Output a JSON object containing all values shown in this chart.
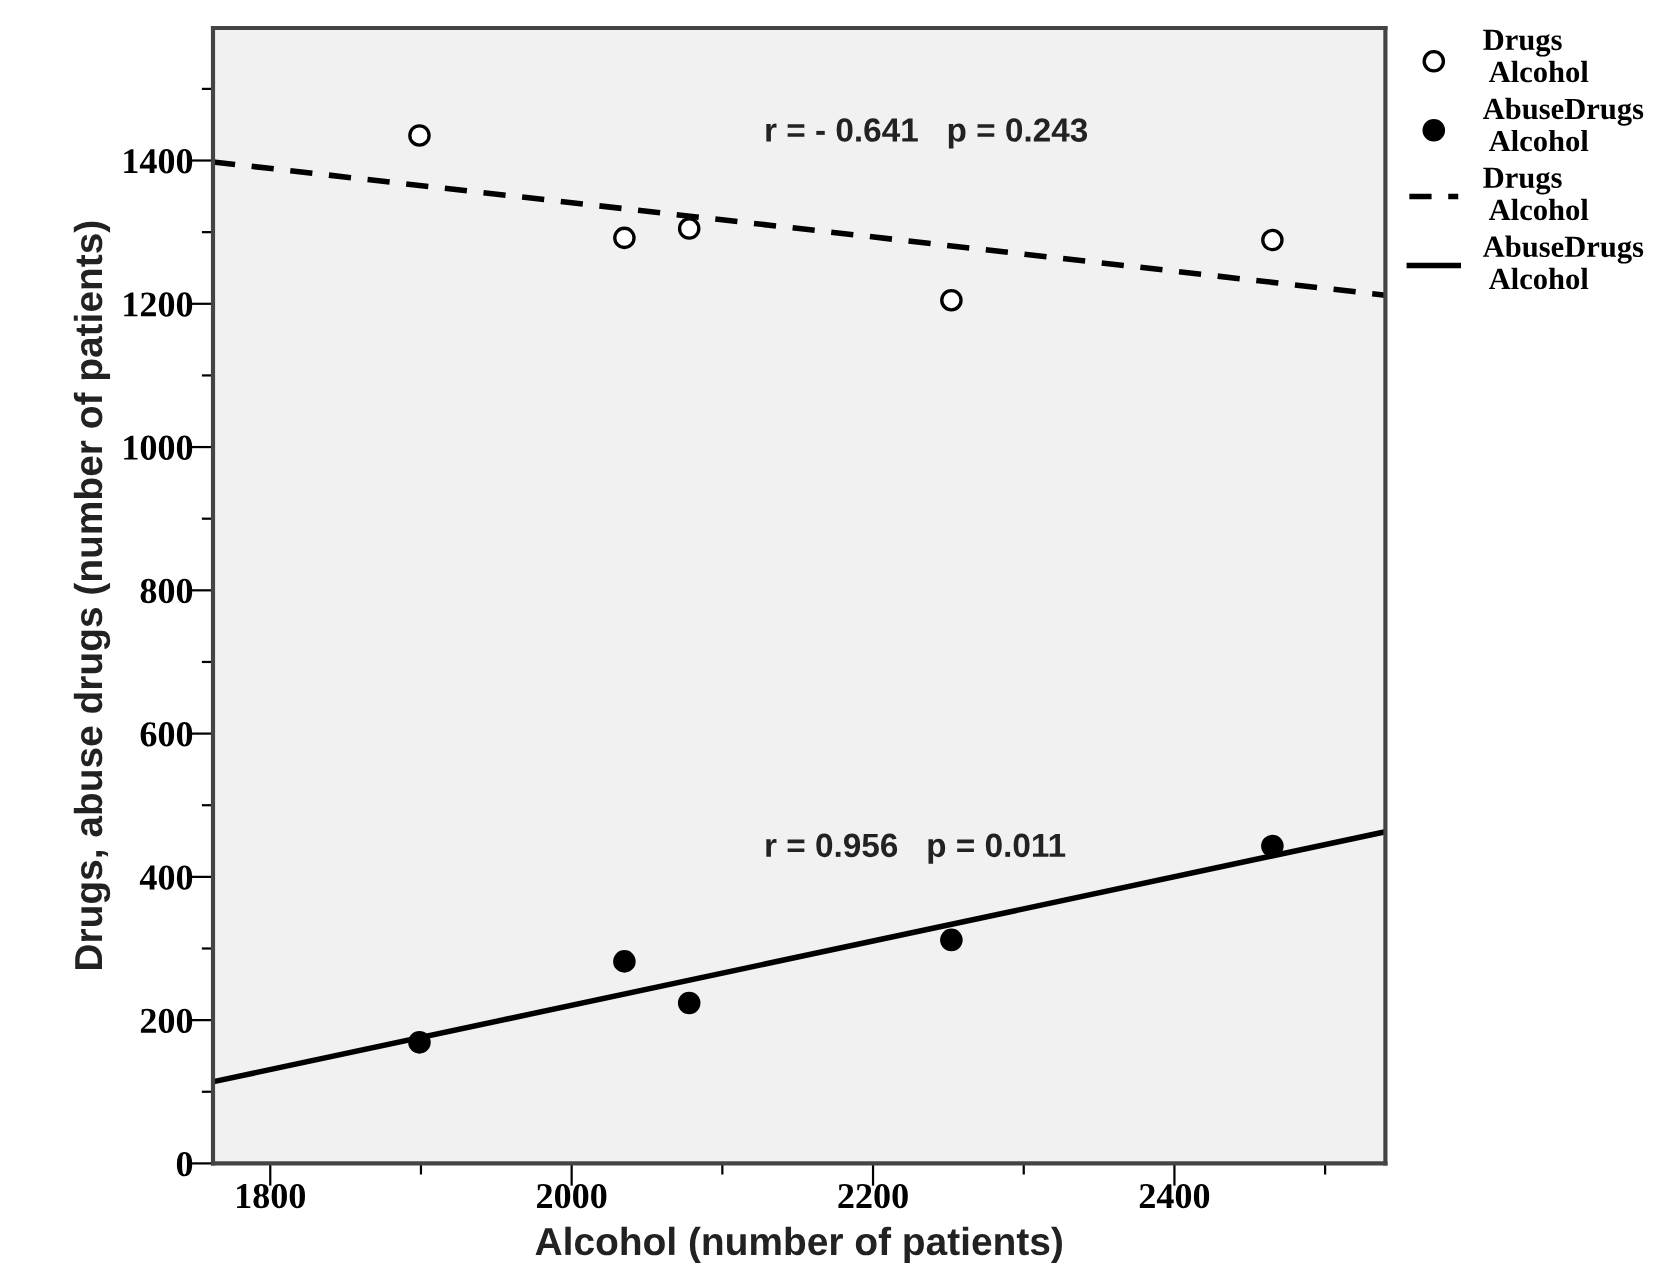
{
  "chart_data": {
    "type": "scatter",
    "xlabel": "Alcohol (number of patients)",
    "ylabel": "Drugs, abuse drugs (number of patients)",
    "xlim": [
      1762,
      2540
    ],
    "ylim": [
      0,
      1585
    ],
    "xticks": [
      1800,
      {
        "value": 1900,
        "label": null
      },
      2000,
      {
        "value": 2100,
        "label": null
      },
      2200,
      {
        "value": 2300,
        "label": null
      },
      2400,
      {
        "value": 2500,
        "label": null
      }
    ],
    "yticks": [
      0,
      {
        "value": 100,
        "label": null
      },
      200,
      {
        "value": 300,
        "label": null
      },
      400,
      {
        "value": 500,
        "label": null
      },
      600,
      {
        "value": 700,
        "label": null
      },
      800,
      {
        "value": 900,
        "label": null
      },
      1000,
      {
        "value": 1100,
        "label": null
      },
      1200,
      {
        "value": 1300,
        "label": null
      },
      1400,
      {
        "value": 1500,
        "label": null
      }
    ],
    "grid": false,
    "legend": "right",
    "series": [
      {
        "name": "Drugs\n Alcohol",
        "marker": "circle",
        "color": "#ffffff",
        "x": [
          1899,
          2035,
          2078,
          2252,
          2465
        ],
        "values": [
          1435,
          1292,
          1305,
          1205,
          1289
        ]
      },
      {
        "name": "AbuseDrugs\n Alcohol",
        "marker": "circle",
        "color": "#000000",
        "x": [
          1899,
          2035,
          2078,
          2252,
          2465
        ],
        "values": [
          169,
          282,
          224,
          312,
          443
        ]
      },
      {
        "name": "Drugs\n Alcohol",
        "type": "line",
        "line_style": "dashed",
        "color": "#000000",
        "x": [
          1762,
          2540
        ],
        "values": [
          1398,
          1212
        ]
      },
      {
        "name": "AbuseDrugs\n Alcohol",
        "type": "line",
        "line_style": "solid",
        "color": "#000000",
        "x": [
          1762,
          2540
        ],
        "values": [
          114,
          463
        ]
      }
    ],
    "annotations": [
      "r = - 0.641   p = 0.243",
      "r = 0.956   p = 0.011"
    ]
  }
}
